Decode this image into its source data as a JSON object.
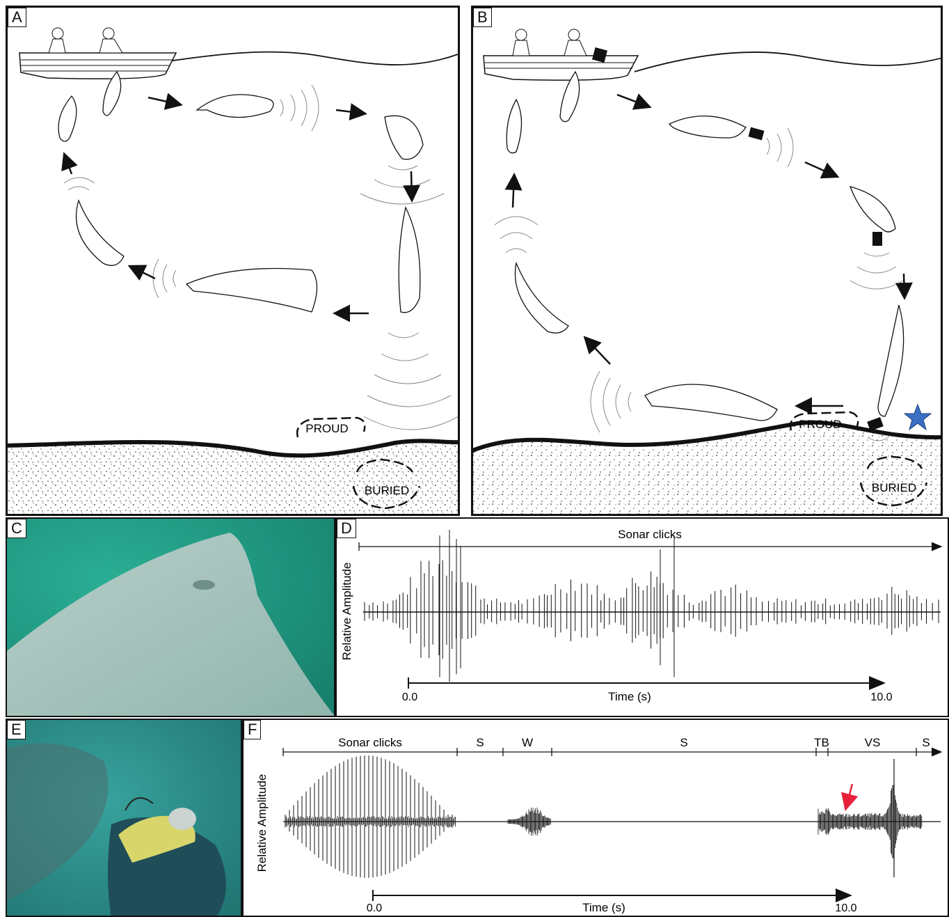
{
  "panels": {
    "a": {
      "letter": "A",
      "proud_label": "PROUD",
      "buried_label": "BURIED"
    },
    "b": {
      "letter": "B",
      "proud_label": "PROUD",
      "buried_label": "BURIED"
    },
    "c": {
      "letter": "C"
    },
    "d": {
      "letter": "D",
      "title": "Sonar clicks",
      "ylabel": "Relative Amplitude",
      "xlabel": "Time (s)",
      "x_start": "0.0",
      "x_end": "10.0"
    },
    "e": {
      "letter": "E"
    },
    "f": {
      "letter": "F",
      "ylabel": "Relative Amplitude",
      "xlabel": "Time (s)",
      "x_start": "0.0",
      "x_end": "10.0",
      "segments": [
        "Sonar clicks",
        "S",
        "W",
        "S",
        "TB",
        "VS",
        "S"
      ]
    }
  },
  "colors": {
    "star": "#3a6fc4",
    "arrow_highlight": "#e8213a",
    "water_c": "#1f9a83",
    "water_e": "#2f8f8c"
  },
  "icons": [
    "boat-icon",
    "dolphin-icon",
    "star-icon",
    "target-icon"
  ]
}
